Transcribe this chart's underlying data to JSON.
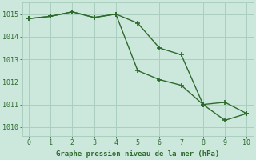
{
  "line1_x": [
    0,
    1,
    2,
    3,
    4,
    5,
    6,
    7,
    8,
    9,
    10
  ],
  "line1_y": [
    1014.8,
    1014.9,
    1015.1,
    1014.85,
    1015.0,
    1014.6,
    1013.5,
    1013.2,
    1011.0,
    1010.3,
    1010.6
  ],
  "line2_x": [
    0,
    1,
    2,
    3,
    4,
    5,
    6,
    7,
    8,
    9,
    10
  ],
  "line2_y": [
    1014.8,
    1014.9,
    1015.1,
    1014.85,
    1015.0,
    1012.5,
    1012.1,
    1011.85,
    1011.0,
    1011.1,
    1010.6
  ],
  "line_color": "#2d6a2d",
  "bg_color": "#cce8dc",
  "grid_color": "#aacfbe",
  "xlabel": "Graphe pression niveau de la mer (hPa)",
  "xlim": [
    -0.3,
    10.3
  ],
  "ylim": [
    1009.6,
    1015.5
  ],
  "yticks": [
    1010,
    1011,
    1012,
    1013,
    1014,
    1015
  ],
  "xticks": [
    0,
    1,
    2,
    3,
    4,
    5,
    6,
    7,
    8,
    9,
    10
  ],
  "marker": "+",
  "markersize": 5,
  "linewidth": 1.0
}
